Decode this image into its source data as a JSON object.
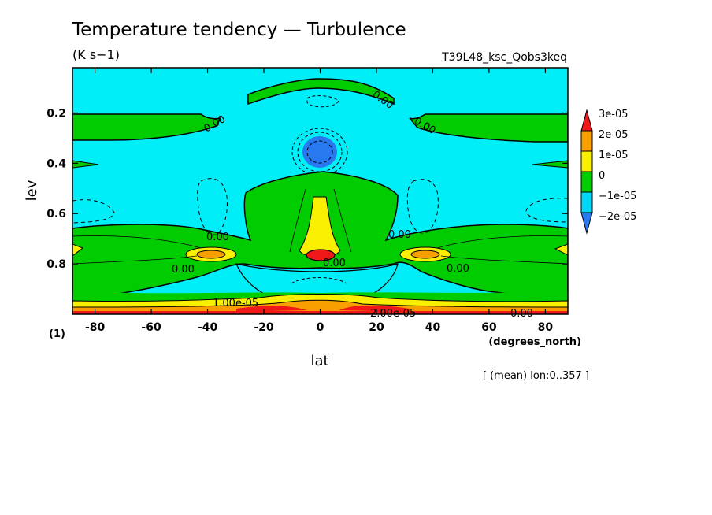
{
  "chart_data": {
    "type": "heatmap",
    "title": "Temperature tendency — Turbulence",
    "units": "(K s−1)",
    "experiment": "T39L48_ksc_Qobs3keq",
    "xlabel": "lat",
    "x_units": "(degrees_north)",
    "ylabel": "lev",
    "y_units": "(1)",
    "subtitle": "[ (mean) lon:0..357 ]",
    "xlim": [
      -88,
      88
    ],
    "ylim": [
      1.0,
      0.02
    ],
    "x_ticks": [
      "-80",
      "-60",
      "-40",
      "-20",
      "0",
      "20",
      "40",
      "60",
      "80"
    ],
    "x_tick_values": [
      -80,
      -60,
      -40,
      -20,
      0,
      20,
      40,
      60,
      80
    ],
    "y_ticks": [
      "0.2",
      "0.4",
      "0.6",
      "0.8"
    ],
    "y_tick_values": [
      0.2,
      0.4,
      0.6,
      0.8
    ],
    "colorbar": {
      "labels": [
        "3e-05",
        "2e-05",
        "1e-05",
        "0",
        "−1e-05",
        "−2e-05"
      ],
      "colors": [
        "#2878f0",
        "#00d8f8",
        "#00cc00",
        "#f8f000",
        "#f8a000",
        "#f01818"
      ],
      "color_names": [
        "blue",
        "cyan",
        "green",
        "yellow",
        "orange",
        "red"
      ]
    },
    "contour_labels": [
      "0.00",
      "1.00e-05",
      "2.00e-05"
    ],
    "regions": [
      {
        "name": "upper-green-band",
        "level": "0 to 1e-05"
      },
      {
        "name": "central-blue-core",
        "level": "-2e-05 to -1e-05",
        "lat": 0,
        "lev": 0.33
      },
      {
        "name": "central-yellow-column",
        "level": "1e-05 to 2e-05",
        "lat": 0,
        "lev": [
          0.55,
          0.75
        ]
      },
      {
        "name": "central-red-spot",
        "level": "> 3e-05",
        "lat": 0,
        "lev": 0.76
      },
      {
        "name": "surface-red-layer",
        "level": "> 3e-05",
        "lev": [
          0.97,
          1.0
        ]
      }
    ]
  }
}
